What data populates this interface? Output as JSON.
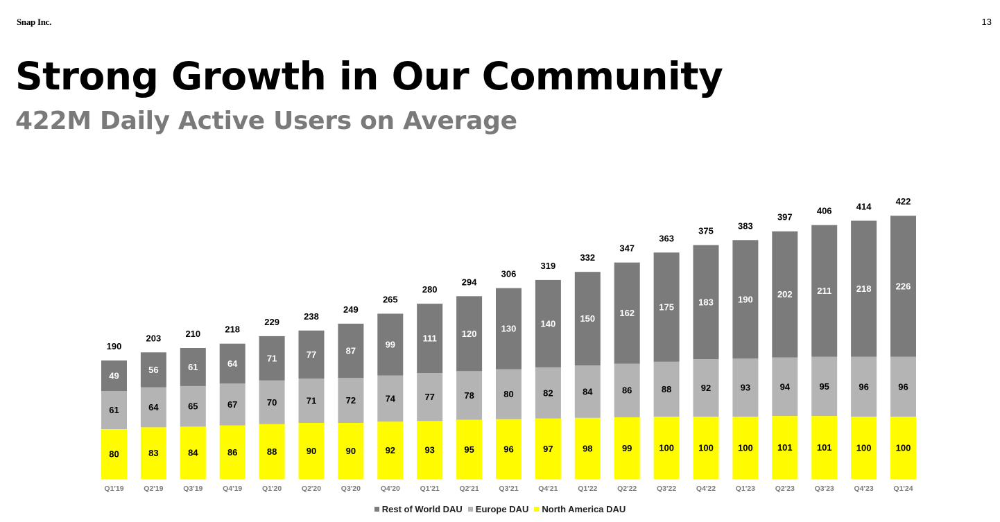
{
  "header": {
    "brand": "Snap Inc.",
    "page_number": "13",
    "title": "Strong Growth in Our Community",
    "subtitle": "422M Daily Active Users on Average"
  },
  "colors": {
    "rest_of_world": "#7b7b7b",
    "europe": "#b4b4b4",
    "north_america": "#fffc00",
    "label_on_dark": "#ffffff",
    "label_on_light": "#000000"
  },
  "chart_data": {
    "type": "bar",
    "stacked": true,
    "title": "",
    "xlabel": "",
    "ylabel": "",
    "ylim": [
      0,
      430
    ],
    "grid": false,
    "legend_position": "bottom-center",
    "categories": [
      "Q1'19",
      "Q2'19",
      "Q3'19",
      "Q4'19",
      "Q1'20",
      "Q2'20",
      "Q3'20",
      "Q4'20",
      "Q1'21",
      "Q2'21",
      "Q3'21",
      "Q4'21",
      "Q1'22",
      "Q2'22",
      "Q3'22",
      "Q4'22",
      "Q1'23",
      "Q2'23",
      "Q3'23",
      "Q4'23",
      "Q1'24"
    ],
    "series": [
      {
        "name": "North America DAU",
        "key": "north_america",
        "values": [
          80,
          83,
          84,
          86,
          88,
          90,
          90,
          92,
          93,
          95,
          96,
          97,
          98,
          99,
          100,
          100,
          100,
          101,
          101,
          100,
          100
        ]
      },
      {
        "name": "Europe DAU",
        "key": "europe",
        "values": [
          61,
          64,
          65,
          67,
          70,
          71,
          72,
          74,
          77,
          78,
          80,
          82,
          84,
          86,
          88,
          92,
          93,
          94,
          95,
          96,
          96
        ]
      },
      {
        "name": "Rest of World DAU",
        "key": "rest_of_world",
        "values": [
          49,
          56,
          61,
          64,
          71,
          77,
          87,
          99,
          111,
          120,
          130,
          140,
          150,
          162,
          175,
          183,
          190,
          202,
          211,
          218,
          226
        ]
      }
    ],
    "totals": [
      190,
      203,
      210,
      218,
      229,
      238,
      249,
      265,
      280,
      294,
      306,
      319,
      332,
      347,
      363,
      375,
      383,
      397,
      406,
      414,
      422
    ],
    "legend": [
      "Rest of World DAU",
      "Europe DAU",
      "North America DAU"
    ]
  }
}
